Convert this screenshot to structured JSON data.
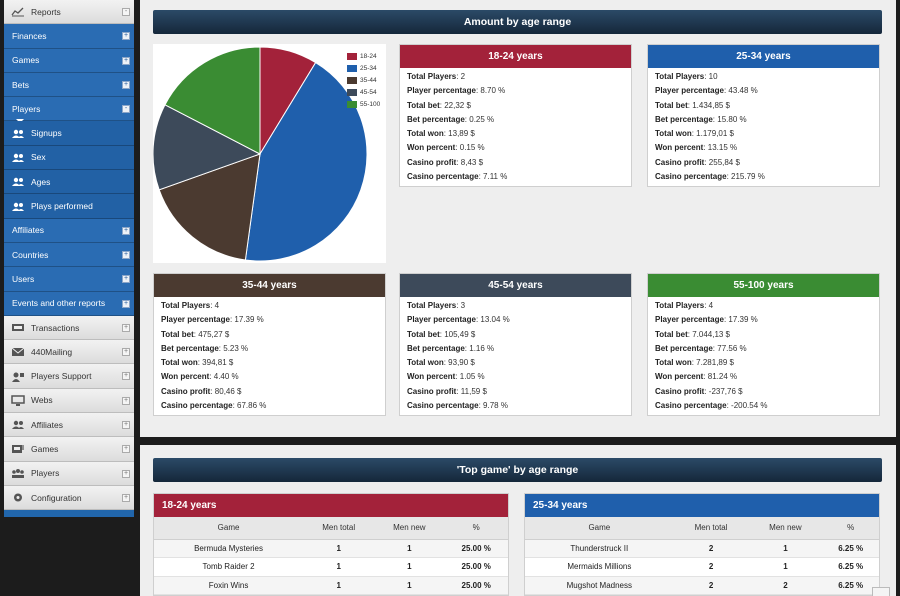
{
  "sidebar": {
    "items": [
      {
        "label": "Reports",
        "style": "light",
        "icon": "line-chart-icon",
        "toggle": "-"
      },
      {
        "label": "Finances",
        "style": "blue",
        "icon": "",
        "toggle": "+"
      },
      {
        "label": "Games",
        "style": "blue",
        "icon": "",
        "toggle": "+"
      },
      {
        "label": "Bets",
        "style": "blue",
        "icon": "",
        "toggle": "+"
      },
      {
        "label": "Players",
        "style": "blue",
        "icon": "",
        "toggle": "-"
      },
      {
        "label": "Signups",
        "style": "sub",
        "icon": "users-icon",
        "toggle": ""
      },
      {
        "label": "Sex",
        "style": "sub",
        "icon": "users-icon",
        "toggle": ""
      },
      {
        "label": "Ages",
        "style": "sub",
        "icon": "users-icon",
        "toggle": ""
      },
      {
        "label": "Plays performed",
        "style": "sub",
        "icon": "users-icon",
        "toggle": ""
      },
      {
        "label": "Affiliates",
        "style": "blue",
        "icon": "",
        "toggle": "+"
      },
      {
        "label": "Countries",
        "style": "blue",
        "icon": "",
        "toggle": "+"
      },
      {
        "label": "Users",
        "style": "blue",
        "icon": "",
        "toggle": "+"
      },
      {
        "label": "Events and other reports",
        "style": "blue",
        "icon": "",
        "toggle": "+"
      },
      {
        "label": "Transactions",
        "style": "light",
        "icon": "cards-icon",
        "toggle": "+"
      },
      {
        "label": "440Mailing",
        "style": "light",
        "icon": "mail-icon",
        "toggle": "+"
      },
      {
        "label": "Players Support",
        "style": "light",
        "icon": "support-icon",
        "toggle": "+"
      },
      {
        "label": "Webs",
        "style": "light",
        "icon": "monitor-icon",
        "toggle": "+"
      },
      {
        "label": "Affiliates",
        "style": "light",
        "icon": "users-icon",
        "toggle": "+"
      },
      {
        "label": "Games",
        "style": "light",
        "icon": "slot-machine-icon",
        "toggle": "+"
      },
      {
        "label": "Players",
        "style": "light",
        "icon": "group-icon",
        "toggle": "+"
      },
      {
        "label": "Configuration",
        "style": "light",
        "icon": "gear-icon",
        "toggle": "+"
      }
    ]
  },
  "amount_section": {
    "title": "Amount by age range"
  },
  "chart_data": {
    "type": "pie",
    "title": "",
    "categories": [
      "18-24",
      "25-34",
      "35-44",
      "45-54",
      "55-100"
    ],
    "values": [
      8.7,
      43.48,
      17.39,
      13.04,
      17.39
    ],
    "colors": [
      "#a3223a",
      "#1f5fac",
      "#4b3a30",
      "#3d4a5a",
      "#3a8c33"
    ],
    "legend_position": "top-right"
  },
  "age_cards": [
    {
      "title": "18-24 years",
      "color": "#a3223a",
      "stats": {
        "Total Players": "2",
        "Player percentage": "8.70 %",
        "Total bet": "22,32 $",
        "Bet percentage": "0.25 %",
        "Total won": "13,89 $",
        "Won percent": "0.15 %",
        "Casino profit": "8,43 $",
        "Casino percentage": "7.11 %"
      }
    },
    {
      "title": "25-34 years",
      "color": "#1f5fac",
      "stats": {
        "Total Players": "10",
        "Player percentage": "43.48 %",
        "Total bet": "1.434,85 $",
        "Bet percentage": "15.80 %",
        "Total won": "1.179,01 $",
        "Won percent": "13.15 %",
        "Casino profit": "255,84 $",
        "Casino percentage": "215.79 %"
      }
    },
    {
      "title": "35-44 years",
      "color": "#4b3a30",
      "stats": {
        "Total Players": "4",
        "Player percentage": "17.39 %",
        "Total bet": "475,27 $",
        "Bet percentage": "5.23 %",
        "Total won": "394,81 $",
        "Won percent": "4.40 %",
        "Casino profit": "80,46 $",
        "Casino percentage": "67.86 %"
      }
    },
    {
      "title": "45-54 years",
      "color": "#3d4a5a",
      "stats": {
        "Total Players": "3",
        "Player percentage": "13.04 %",
        "Total bet": "105,49 $",
        "Bet percentage": "1.16 %",
        "Total won": "93,90 $",
        "Won percent": "1.05 %",
        "Casino profit": "11,59 $",
        "Casino percentage": "9.78 %"
      }
    },
    {
      "title": "55-100 years",
      "color": "#3a8c33",
      "stats": {
        "Total Players": "4",
        "Player percentage": "17.39 %",
        "Total bet": "7.044,13 $",
        "Bet percentage": "77.56 %",
        "Total won": "7.281,89 $",
        "Won percent": "81.24 %",
        "Casino profit": "-237,76 $",
        "Casino percentage": "-200.54 %"
      }
    }
  ],
  "top_game_section": {
    "title": "'Top game' by age range"
  },
  "top_game_tables": [
    {
      "title": "18-24 years",
      "color": "#a3223a",
      "columns": [
        "Game",
        "Men total",
        "Men new",
        "%"
      ],
      "rows": [
        [
          "Bermuda Mysteries",
          "1",
          "1",
          "25.00 %"
        ],
        [
          "Tomb Raider 2",
          "1",
          "1",
          "25.00 %"
        ],
        [
          "Foxin Wins",
          "1",
          "1",
          "25.00 %"
        ]
      ]
    },
    {
      "title": "25-34 years",
      "color": "#1f5fac",
      "columns": [
        "Game",
        "Men total",
        "Men new",
        "%"
      ],
      "rows": [
        [
          "Thunderstruck II",
          "2",
          "1",
          "6.25 %"
        ],
        [
          "Mermaids Millions",
          "2",
          "1",
          "6.25 %"
        ],
        [
          "Mugshot Madness",
          "2",
          "2",
          "6.25 %"
        ]
      ]
    }
  ]
}
